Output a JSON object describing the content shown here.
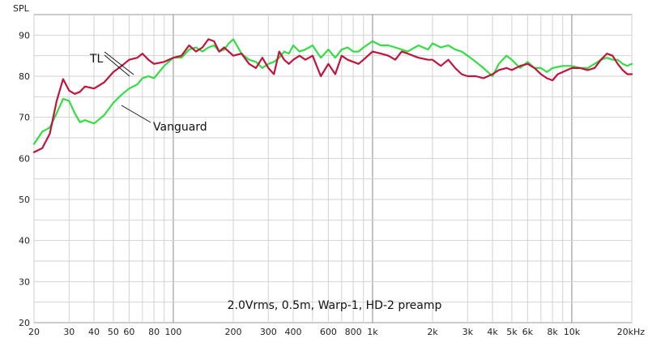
{
  "chart_data": {
    "type": "line",
    "ylabel": "SPL",
    "annotation": "2.0Vrms, 0.5m, Warp-1, HD-2 preamp",
    "x_scale": "log",
    "xlim": [
      20,
      20000
    ],
    "ylim": [
      20,
      95
    ],
    "grid": true,
    "x_ticks": [
      {
        "v": 20,
        "label": "20"
      },
      {
        "v": 30,
        "label": "30"
      },
      {
        "v": 40,
        "label": "40"
      },
      {
        "v": 50,
        "label": "50"
      },
      {
        "v": 60,
        "label": "60"
      },
      {
        "v": 80,
        "label": "80"
      },
      {
        "v": 100,
        "label": "100"
      },
      {
        "v": 200,
        "label": "200"
      },
      {
        "v": 300,
        "label": "300"
      },
      {
        "v": 400,
        "label": "400"
      },
      {
        "v": 600,
        "label": "600"
      },
      {
        "v": 800,
        "label": "800"
      },
      {
        "v": 1000,
        "label": "1k"
      },
      {
        "v": 2000,
        "label": "2k"
      },
      {
        "v": 3000,
        "label": "3k"
      },
      {
        "v": 4000,
        "label": "4k"
      },
      {
        "v": 5000,
        "label": "5k"
      },
      {
        "v": 6000,
        "label": "6k"
      },
      {
        "v": 8000,
        "label": "8k"
      },
      {
        "v": 10000,
        "label": "10k"
      },
      {
        "v": 20000,
        "label": "20kHz"
      }
    ],
    "y_ticks": [
      20,
      30,
      40,
      50,
      60,
      70,
      80,
      90
    ],
    "series": [
      {
        "name": "TL",
        "color": "#c0143c",
        "points": [
          [
            20,
            61.5
          ],
          [
            22,
            62.5
          ],
          [
            24,
            66
          ],
          [
            26,
            74
          ],
          [
            28,
            79.3
          ],
          [
            30,
            76.5
          ],
          [
            32,
            75.7
          ],
          [
            34,
            76.2
          ],
          [
            36,
            77.5
          ],
          [
            40,
            77
          ],
          [
            45,
            78.5
          ],
          [
            50,
            81
          ],
          [
            55,
            82.5
          ],
          [
            60,
            84
          ],
          [
            66,
            84.5
          ],
          [
            70,
            85.5
          ],
          [
            75,
            84
          ],
          [
            80,
            83
          ],
          [
            90,
            83.5
          ],
          [
            100,
            84.5
          ],
          [
            110,
            85
          ],
          [
            120,
            87.5
          ],
          [
            130,
            86
          ],
          [
            140,
            87
          ],
          [
            150,
            89
          ],
          [
            160,
            88.5
          ],
          [
            170,
            86
          ],
          [
            180,
            87
          ],
          [
            200,
            85
          ],
          [
            220,
            85.5
          ],
          [
            240,
            83
          ],
          [
            260,
            82
          ],
          [
            280,
            84.5
          ],
          [
            300,
            82
          ],
          [
            320,
            80.5
          ],
          [
            340,
            86
          ],
          [
            360,
            84
          ],
          [
            380,
            83
          ],
          [
            400,
            84
          ],
          [
            430,
            85
          ],
          [
            460,
            84
          ],
          [
            500,
            85
          ],
          [
            550,
            80
          ],
          [
            600,
            83
          ],
          [
            650,
            80.5
          ],
          [
            700,
            85
          ],
          [
            750,
            84
          ],
          [
            800,
            83.5
          ],
          [
            850,
            83
          ],
          [
            900,
            84
          ],
          [
            1000,
            86
          ],
          [
            1100,
            85.5
          ],
          [
            1200,
            85
          ],
          [
            1300,
            84
          ],
          [
            1400,
            86
          ],
          [
            1500,
            85.5
          ],
          [
            1700,
            84.5
          ],
          [
            1900,
            84
          ],
          [
            2000,
            84
          ],
          [
            2200,
            82.5
          ],
          [
            2400,
            84
          ],
          [
            2600,
            82
          ],
          [
            2800,
            80.5
          ],
          [
            3000,
            80
          ],
          [
            3300,
            80
          ],
          [
            3600,
            79.5
          ],
          [
            4000,
            80.5
          ],
          [
            4300,
            81.5
          ],
          [
            4700,
            82
          ],
          [
            5000,
            81.5
          ],
          [
            5500,
            82.5
          ],
          [
            6000,
            83
          ],
          [
            6500,
            82
          ],
          [
            7000,
            80.5
          ],
          [
            7500,
            79.5
          ],
          [
            8000,
            79
          ],
          [
            8500,
            80.5
          ],
          [
            9000,
            81
          ],
          [
            10000,
            82
          ],
          [
            11000,
            82
          ],
          [
            12000,
            81.5
          ],
          [
            13000,
            82
          ],
          [
            14000,
            84
          ],
          [
            15000,
            85.5
          ],
          [
            16000,
            85
          ],
          [
            17000,
            83
          ],
          [
            18000,
            81.5
          ],
          [
            19000,
            80.5
          ],
          [
            20000,
            80.5
          ]
        ]
      },
      {
        "name": "Vanguard",
        "color": "#33dd44",
        "points": [
          [
            20,
            63.5
          ],
          [
            22,
            66.5
          ],
          [
            24,
            67.5
          ],
          [
            26,
            71
          ],
          [
            28,
            74.5
          ],
          [
            30,
            74
          ],
          [
            32,
            71
          ],
          [
            34,
            68.8
          ],
          [
            36,
            69.3
          ],
          [
            40,
            68.5
          ],
          [
            45,
            70.5
          ],
          [
            50,
            73.5
          ],
          [
            55,
            75.5
          ],
          [
            60,
            77
          ],
          [
            66,
            78
          ],
          [
            70,
            79.5
          ],
          [
            75,
            80
          ],
          [
            80,
            79.5
          ],
          [
            90,
            82.5
          ],
          [
            100,
            84.5
          ],
          [
            110,
            84.5
          ],
          [
            120,
            86.5
          ],
          [
            130,
            87
          ],
          [
            140,
            86
          ],
          [
            150,
            87
          ],
          [
            160,
            87.5
          ],
          [
            170,
            86
          ],
          [
            180,
            86.5
          ],
          [
            190,
            88
          ],
          [
            200,
            89
          ],
          [
            220,
            85.5
          ],
          [
            240,
            84
          ],
          [
            260,
            83.5
          ],
          [
            280,
            82
          ],
          [
            300,
            83
          ],
          [
            320,
            83.5
          ],
          [
            340,
            84.5
          ],
          [
            360,
            86
          ],
          [
            380,
            85.5
          ],
          [
            400,
            87.5
          ],
          [
            430,
            86
          ],
          [
            460,
            86.5
          ],
          [
            500,
            87.5
          ],
          [
            550,
            84.5
          ],
          [
            600,
            86.5
          ],
          [
            650,
            84.5
          ],
          [
            700,
            86.5
          ],
          [
            750,
            87
          ],
          [
            800,
            86
          ],
          [
            850,
            86
          ],
          [
            900,
            87
          ],
          [
            1000,
            88.5
          ],
          [
            1100,
            87.5
          ],
          [
            1200,
            87.5
          ],
          [
            1300,
            87
          ],
          [
            1400,
            86.5
          ],
          [
            1500,
            86
          ],
          [
            1700,
            87.5
          ],
          [
            1900,
            86.5
          ],
          [
            2000,
            88
          ],
          [
            2200,
            87
          ],
          [
            2400,
            87.5
          ],
          [
            2600,
            86.5
          ],
          [
            2800,
            86
          ],
          [
            3000,
            85
          ],
          [
            3300,
            83.5
          ],
          [
            3600,
            82
          ],
          [
            4000,
            80
          ],
          [
            4300,
            83
          ],
          [
            4700,
            85
          ],
          [
            5000,
            84
          ],
          [
            5500,
            82
          ],
          [
            6000,
            83.5
          ],
          [
            6500,
            82
          ],
          [
            7000,
            82
          ],
          [
            7500,
            81
          ],
          [
            8000,
            82
          ],
          [
            9000,
            82.5
          ],
          [
            10000,
            82.5
          ],
          [
            11000,
            82
          ],
          [
            12000,
            82
          ],
          [
            13000,
            83
          ],
          [
            14000,
            84
          ],
          [
            15000,
            84.5
          ],
          [
            16000,
            84
          ],
          [
            17000,
            84
          ],
          [
            18000,
            83
          ],
          [
            19000,
            82.5
          ],
          [
            20000,
            83
          ]
        ]
      }
    ]
  }
}
